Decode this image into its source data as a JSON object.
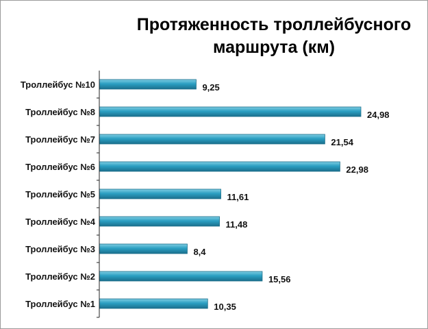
{
  "colors": {
    "bar_top": "#7fcde3",
    "bar_mid": "#2b9fc2",
    "bar_bottom": "#1a6f8c",
    "bar_stroke": "#1d6f8a",
    "axis": "#222222"
  },
  "chart_data": {
    "type": "bar",
    "orientation": "horizontal",
    "title": "Протяженность троллейбусного маршрута (км)",
    "xlabel": "",
    "ylabel": "",
    "xlim": [
      0,
      25
    ],
    "grid": false,
    "legend": "none",
    "categories": [
      "Троллейбус №10",
      "Троллейбус №8",
      "Троллейбус №7",
      "Троллейбус №6",
      "Троллейбус №5",
      "Троллейбус №4",
      "Троллейбус №3",
      "Троллейбус №2",
      "Троллейбус №1"
    ],
    "values": [
      9.25,
      24.98,
      21.54,
      22.98,
      11.61,
      11.48,
      8.4,
      15.56,
      10.35
    ],
    "data_labels": [
      "9,25",
      "24,98",
      "21,54",
      "22,98",
      "11,61",
      "11,48",
      "8,4",
      "15,56",
      "10,35"
    ]
  }
}
